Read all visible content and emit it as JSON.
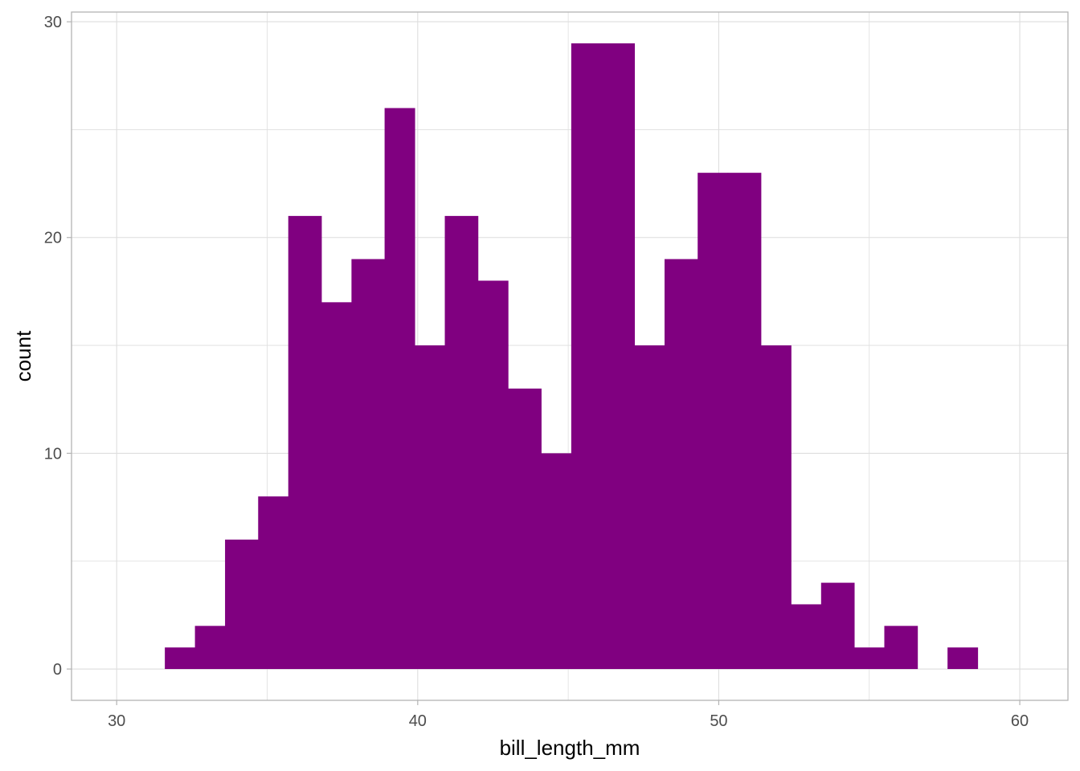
{
  "chart_data": {
    "type": "bar",
    "subtype": "histogram",
    "title": "",
    "xlabel": "bill_length_mm",
    "ylabel": "count",
    "xlim": [
      28.5,
      61.6
    ],
    "ylim": [
      -1.45,
      30.45
    ],
    "x_ticks": [
      30,
      40,
      50,
      60
    ],
    "y_ticks": [
      0,
      10,
      20,
      30
    ],
    "x_minor_ticks": [
      35,
      45,
      55
    ],
    "y_minor_ticks": [
      5,
      15,
      25
    ],
    "grid": true,
    "panel_border": true,
    "bar_color": "#800080",
    "grid_color": "#dedede",
    "border_color": "#b3b3b3",
    "bins": [
      {
        "x0": 31.6,
        "x1": 32.6,
        "count": 1
      },
      {
        "x0": 32.6,
        "x1": 33.6,
        "count": 2
      },
      {
        "x0": 33.6,
        "x1": 34.7,
        "count": 6
      },
      {
        "x0": 34.7,
        "x1": 35.7,
        "count": 8
      },
      {
        "x0": 35.7,
        "x1": 36.8,
        "count": 21
      },
      {
        "x0": 36.8,
        "x1": 37.8,
        "count": 17
      },
      {
        "x0": 37.8,
        "x1": 38.9,
        "count": 19
      },
      {
        "x0": 38.9,
        "x1": 39.9,
        "count": 26
      },
      {
        "x0": 39.9,
        "x1": 40.9,
        "count": 15
      },
      {
        "x0": 40.9,
        "x1": 42.0,
        "count": 21
      },
      {
        "x0": 42.0,
        "x1": 43.0,
        "count": 18
      },
      {
        "x0": 43.0,
        "x1": 44.1,
        "count": 13
      },
      {
        "x0": 44.1,
        "x1": 45.1,
        "count": 10
      },
      {
        "x0": 45.1,
        "x1": 46.1,
        "count": 29
      },
      {
        "x0": 46.1,
        "x1": 47.2,
        "count": 29
      },
      {
        "x0": 47.2,
        "x1": 48.2,
        "count": 15
      },
      {
        "x0": 48.2,
        "x1": 49.3,
        "count": 19
      },
      {
        "x0": 49.3,
        "x1": 50.3,
        "count": 23
      },
      {
        "x0": 50.3,
        "x1": 51.4,
        "count": 23
      },
      {
        "x0": 51.4,
        "x1": 52.4,
        "count": 15
      },
      {
        "x0": 52.4,
        "x1": 53.4,
        "count": 3
      },
      {
        "x0": 53.4,
        "x1": 54.5,
        "count": 4
      },
      {
        "x0": 54.5,
        "x1": 55.5,
        "count": 1
      },
      {
        "x0": 55.5,
        "x1": 56.6,
        "count": 2
      },
      {
        "x0": 56.6,
        "x1": 57.6,
        "count": 0
      },
      {
        "x0": 57.6,
        "x1": 58.6,
        "count": 1
      }
    ]
  }
}
